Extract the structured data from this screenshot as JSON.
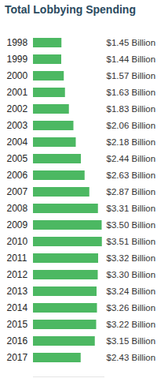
{
  "chart_data": {
    "type": "bar",
    "title": "Total Lobbying Spending",
    "orientation": "horizontal",
    "categories": [
      "1998",
      "1999",
      "2000",
      "2001",
      "2002",
      "2003",
      "2004",
      "2005",
      "2006",
      "2007",
      "2008",
      "2009",
      "2010",
      "2011",
      "2012",
      "2013",
      "2014",
      "2015",
      "2016",
      "2017"
    ],
    "values": [
      1.45,
      1.44,
      1.57,
      1.63,
      1.83,
      2.06,
      2.18,
      2.44,
      2.63,
      2.87,
      3.31,
      3.5,
      3.51,
      3.32,
      3.3,
      3.24,
      3.26,
      3.22,
      3.15,
      2.43
    ],
    "value_labels": [
      "$1.45 Billion",
      "$1.44 Billion",
      "$1.57 Billion",
      "$1.63 Billion",
      "$1.83 Billion",
      "$2.06 Billion",
      "$2.18 Billion",
      "$2.44 Billion",
      "$2.63 Billion",
      "$2.87 Billion",
      "$3.31 Billion",
      "$3.50 Billion",
      "$3.51 Billion",
      "$3.32 Billion",
      "$3.30 Billion",
      "$3.24 Billion",
      "$3.26 Billion",
      "$3.22 Billion",
      "$3.15 Billion",
      "$2.43 Billion"
    ],
    "color": "#4cb862",
    "xlim": [
      0,
      3.6
    ],
    "xticks": [],
    "data_labels": true,
    "tick_labels": "y",
    "grid": false
  }
}
